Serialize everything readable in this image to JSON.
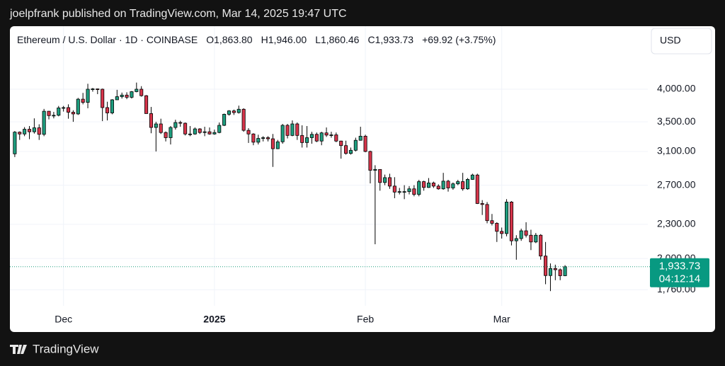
{
  "header": {
    "published": "joelpfrank published on TradingView.com, Mar 14, 2025 19:47 UTC",
    "brand": "TradingView"
  },
  "chart_data": {
    "type": "candlestick",
    "symbol": "Ethereum / U.S. Dollar · 1D · COINBASE",
    "ohlc": [
      "O1,863.80",
      "H1,946.00",
      "L1,860.46",
      "C1,933.73"
    ],
    "change": "+69.92 (+3.75%)",
    "currency": "USD",
    "log_scale": true,
    "grid": true,
    "up_color": "#1e9e7f",
    "down_color": "#d6344a",
    "wick_color": "#000000",
    "x": [
      "2024-11-21",
      "2024-11-22",
      "2024-11-23",
      "2024-11-24",
      "2024-11-25",
      "2024-11-26",
      "2024-11-27",
      "2024-11-28",
      "2024-11-29",
      "2024-11-30",
      "2024-12-01",
      "2024-12-02",
      "2024-12-03",
      "2024-12-04",
      "2024-12-05",
      "2024-12-06",
      "2024-12-07",
      "2024-12-08",
      "2024-12-09",
      "2024-12-10",
      "2024-12-11",
      "2024-12-12",
      "2024-12-13",
      "2024-12-14",
      "2024-12-15",
      "2024-12-16",
      "2024-12-17",
      "2024-12-18",
      "2024-12-19",
      "2024-12-20",
      "2024-12-21",
      "2024-12-22",
      "2024-12-23",
      "2024-12-24",
      "2024-12-25",
      "2024-12-26",
      "2024-12-27",
      "2024-12-28",
      "2024-12-29",
      "2024-12-30",
      "2024-12-31",
      "2025-01-01",
      "2025-01-02",
      "2025-01-03",
      "2025-01-04",
      "2025-01-05",
      "2025-01-06",
      "2025-01-07",
      "2025-01-08",
      "2025-01-09",
      "2025-01-10",
      "2025-01-11",
      "2025-01-12",
      "2025-01-13",
      "2025-01-14",
      "2025-01-15",
      "2025-01-16",
      "2025-01-17",
      "2025-01-18",
      "2025-01-19",
      "2025-01-20",
      "2025-01-21",
      "2025-01-22",
      "2025-01-23",
      "2025-01-24",
      "2025-01-25",
      "2025-01-26",
      "2025-01-27",
      "2025-01-28",
      "2025-01-29",
      "2025-01-30",
      "2025-01-31",
      "2025-02-01",
      "2025-02-02",
      "2025-02-03",
      "2025-02-04",
      "2025-02-05",
      "2025-02-06",
      "2025-02-07",
      "2025-02-08",
      "2025-02-09",
      "2025-02-10",
      "2025-02-11",
      "2025-02-12",
      "2025-02-13",
      "2025-02-14",
      "2025-02-15",
      "2025-02-16",
      "2025-02-17",
      "2025-02-18",
      "2025-02-19",
      "2025-02-20",
      "2025-02-21",
      "2025-02-22",
      "2025-02-23",
      "2025-02-24",
      "2025-02-25",
      "2025-02-26",
      "2025-02-27",
      "2025-02-28",
      "2025-03-01",
      "2025-03-02",
      "2025-03-03",
      "2025-03-04",
      "2025-03-05",
      "2025-03-06",
      "2025-03-07",
      "2025-03-08",
      "2025-03-09",
      "2025-03-10",
      "2025-03-11",
      "2025-03-12",
      "2025-03-13",
      "2025-03-14"
    ],
    "open": [
      3070,
      3355,
      3330,
      3395,
      3360,
      3415,
      3325,
      3655,
      3590,
      3595,
      3705,
      3710,
      3640,
      3615,
      3840,
      3790,
      4000,
      4005,
      4000,
      3710,
      3630,
      3830,
      3880,
      3905,
      3870,
      3960,
      4000,
      3895,
      3620,
      3420,
      3470,
      3350,
      3280,
      3420,
      3490,
      3480,
      3330,
      3330,
      3400,
      3350,
      3360,
      3330,
      3350,
      3450,
      3610,
      3660,
      3635,
      3685,
      3380,
      3330,
      3220,
      3270,
      3280,
      3265,
      3135,
      3225,
      3450,
      3310,
      3470,
      3310,
      3215,
      3280,
      3325,
      3235,
      3345,
      3315,
      3318,
      3235,
      3175,
      3075,
      3115,
      3245,
      3300,
      3100,
      2870,
      2880,
      2730,
      2785,
      2690,
      2625,
      2630,
      2630,
      2660,
      2600,
      2740,
      2675,
      2725,
      2690,
      2660,
      2745,
      2670,
      2715,
      2740,
      2660,
      2765,
      2815,
      2505,
      2495,
      2335,
      2310,
      2235,
      2215,
      2520,
      2150,
      2170,
      2240,
      2200,
      2140,
      2200,
      2020,
      1865,
      1920,
      1910,
      1863.8
    ],
    "high": [
      3370,
      3365,
      3425,
      3440,
      3550,
      3465,
      3690,
      3660,
      3645,
      3735,
      3735,
      3760,
      3670,
      3860,
      3940,
      4090,
      4020,
      4010,
      4010,
      3800,
      3840,
      3990,
      3945,
      3950,
      3970,
      4110,
      4050,
      3905,
      3720,
      3500,
      3545,
      3365,
      3440,
      3530,
      3515,
      3490,
      3440,
      3420,
      3410,
      3430,
      3420,
      3390,
      3490,
      3620,
      3670,
      3680,
      3740,
      3700,
      3410,
      3340,
      3320,
      3300,
      3300,
      3330,
      3250,
      3470,
      3470,
      3520,
      3490,
      3450,
      3440,
      3360,
      3350,
      3360,
      3420,
      3360,
      3350,
      3240,
      3240,
      3150,
      3280,
      3430,
      3320,
      3110,
      2930,
      2880,
      2820,
      2830,
      2790,
      2670,
      2700,
      2690,
      2700,
      2760,
      2750,
      2780,
      2740,
      2710,
      2840,
      2760,
      2730,
      2760,
      2840,
      2780,
      2830,
      2830,
      2540,
      2520,
      2400,
      2320,
      2270,
      2550,
      2530,
      2200,
      2260,
      2320,
      2250,
      2220,
      2210,
      2140,
      1960,
      1950,
      1920,
      1946.0
    ],
    "low": [
      3030,
      3250,
      3300,
      3260,
      3335,
      3250,
      3300,
      3535,
      3550,
      3580,
      3650,
      3545,
      3500,
      3600,
      3760,
      3700,
      3960,
      3920,
      3510,
      3520,
      3610,
      3830,
      3850,
      3840,
      3850,
      3950,
      3880,
      3620,
      3340,
      3100,
      3330,
      3230,
      3190,
      3390,
      3430,
      3310,
      3300,
      3320,
      3330,
      3300,
      3320,
      3320,
      3340,
      3440,
      3590,
      3600,
      3620,
      3360,
      3210,
      3180,
      3190,
      3230,
      3230,
      2910,
      3130,
      3200,
      3270,
      3300,
      3250,
      3150,
      3150,
      3200,
      3220,
      3180,
      3290,
      3280,
      3220,
      3010,
      3060,
      3060,
      3100,
      3240,
      3090,
      2720,
      2120,
      2640,
      2700,
      2660,
      2560,
      2600,
      2550,
      2600,
      2580,
      2580,
      2640,
      2670,
      2670,
      2650,
      2650,
      2630,
      2650,
      2700,
      2640,
      2650,
      2760,
      2500,
      2390,
      2310,
      2290,
      2140,
      2170,
      2190,
      2110,
      1990,
      2150,
      2180,
      2070,
      2130,
      1990,
      1800,
      1750,
      1830,
      1830,
      1860.46
    ],
    "close": [
      3355,
      3330,
      3395,
      3360,
      3415,
      3325,
      3655,
      3590,
      3595,
      3705,
      3710,
      3640,
      3615,
      3840,
      3790,
      4000,
      4005,
      4000,
      3710,
      3630,
      3830,
      3880,
      3905,
      3870,
      3960,
      4000,
      3895,
      3620,
      3420,
      3470,
      3350,
      3280,
      3420,
      3490,
      3480,
      3330,
      3330,
      3400,
      3350,
      3360,
      3330,
      3350,
      3450,
      3610,
      3660,
      3635,
      3685,
      3380,
      3330,
      3220,
      3270,
      3280,
      3265,
      3135,
      3225,
      3450,
      3310,
      3470,
      3310,
      3215,
      3280,
      3325,
      3235,
      3345,
      3315,
      3318,
      3235,
      3175,
      3075,
      3115,
      3245,
      3300,
      3100,
      2870,
      2880,
      2730,
      2785,
      2690,
      2625,
      2630,
      2630,
      2660,
      2600,
      2740,
      2675,
      2725,
      2690,
      2660,
      2745,
      2670,
      2715,
      2740,
      2660,
      2765,
      2815,
      2505,
      2495,
      2335,
      2310,
      2235,
      2215,
      2520,
      2150,
      2170,
      2240,
      2200,
      2140,
      2200,
      2020,
      1865,
      1920,
      1910,
      1863.8,
      1933.73
    ],
    "xlim": [
      "2024-11-20",
      "2025-03-31"
    ],
    "xticks": [
      {
        "value": "2024-12-01",
        "label": "Dec"
      },
      {
        "value": "2025-01-01",
        "label": "2025"
      },
      {
        "value": "2025-02-01",
        "label": "Feb"
      },
      {
        "value": "2025-03-01",
        "label": "Mar"
      }
    ],
    "ylim": [
      1650,
      5200
    ],
    "yticks": [
      {
        "value": 4000,
        "label": "4,000.00"
      },
      {
        "value": 3500,
        "label": "3,500.00"
      },
      {
        "value": 3100,
        "label": "3,100.00"
      },
      {
        "value": 2700,
        "label": "2,700.00"
      },
      {
        "value": 2300,
        "label": "2,300.00"
      },
      {
        "value": 2000,
        "label": "2,000.00"
      },
      {
        "value": 1760,
        "label": "1,760.00"
      }
    ],
    "last_price": {
      "value": 1933.73,
      "label": "1,933.73"
    },
    "countdown": "04:12:14"
  }
}
